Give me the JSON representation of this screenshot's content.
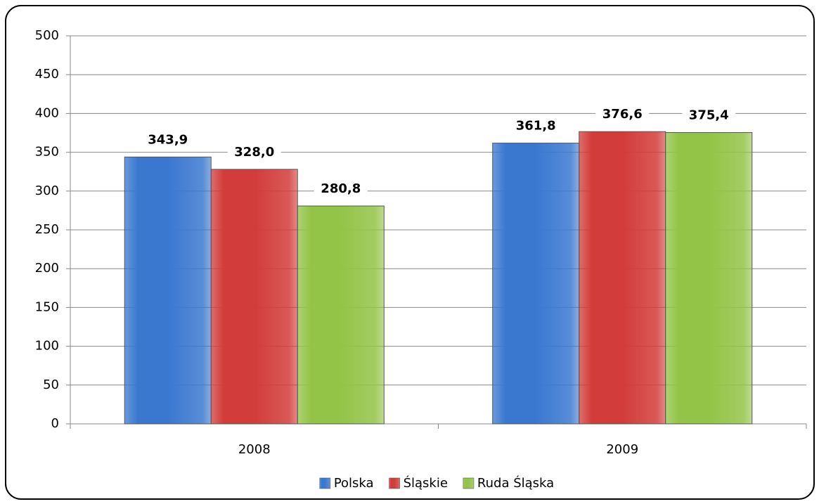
{
  "chart_data": {
    "type": "bar",
    "categories": [
      "2008",
      "2009"
    ],
    "series": [
      {
        "name": "Polska",
        "color": "#3a78d0",
        "values": [
          343.9,
          361.8
        ],
        "value_labels": [
          "343,9",
          "361,8"
        ]
      },
      {
        "name": "Śląskie",
        "color": "#d23c3a",
        "values": [
          328.0,
          376.6
        ],
        "value_labels": [
          "328,0",
          "376,6"
        ]
      },
      {
        "name": "Ruda Śląska",
        "color": "#93c447",
        "values": [
          280.8,
          375.4
        ],
        "value_labels": [
          "280,8",
          "375,4"
        ]
      }
    ],
    "ylim": [
      0,
      500
    ],
    "yticks": [
      0,
      50,
      100,
      150,
      200,
      250,
      300,
      350,
      400,
      450,
      500
    ],
    "grid": true,
    "legend": "bottom"
  }
}
